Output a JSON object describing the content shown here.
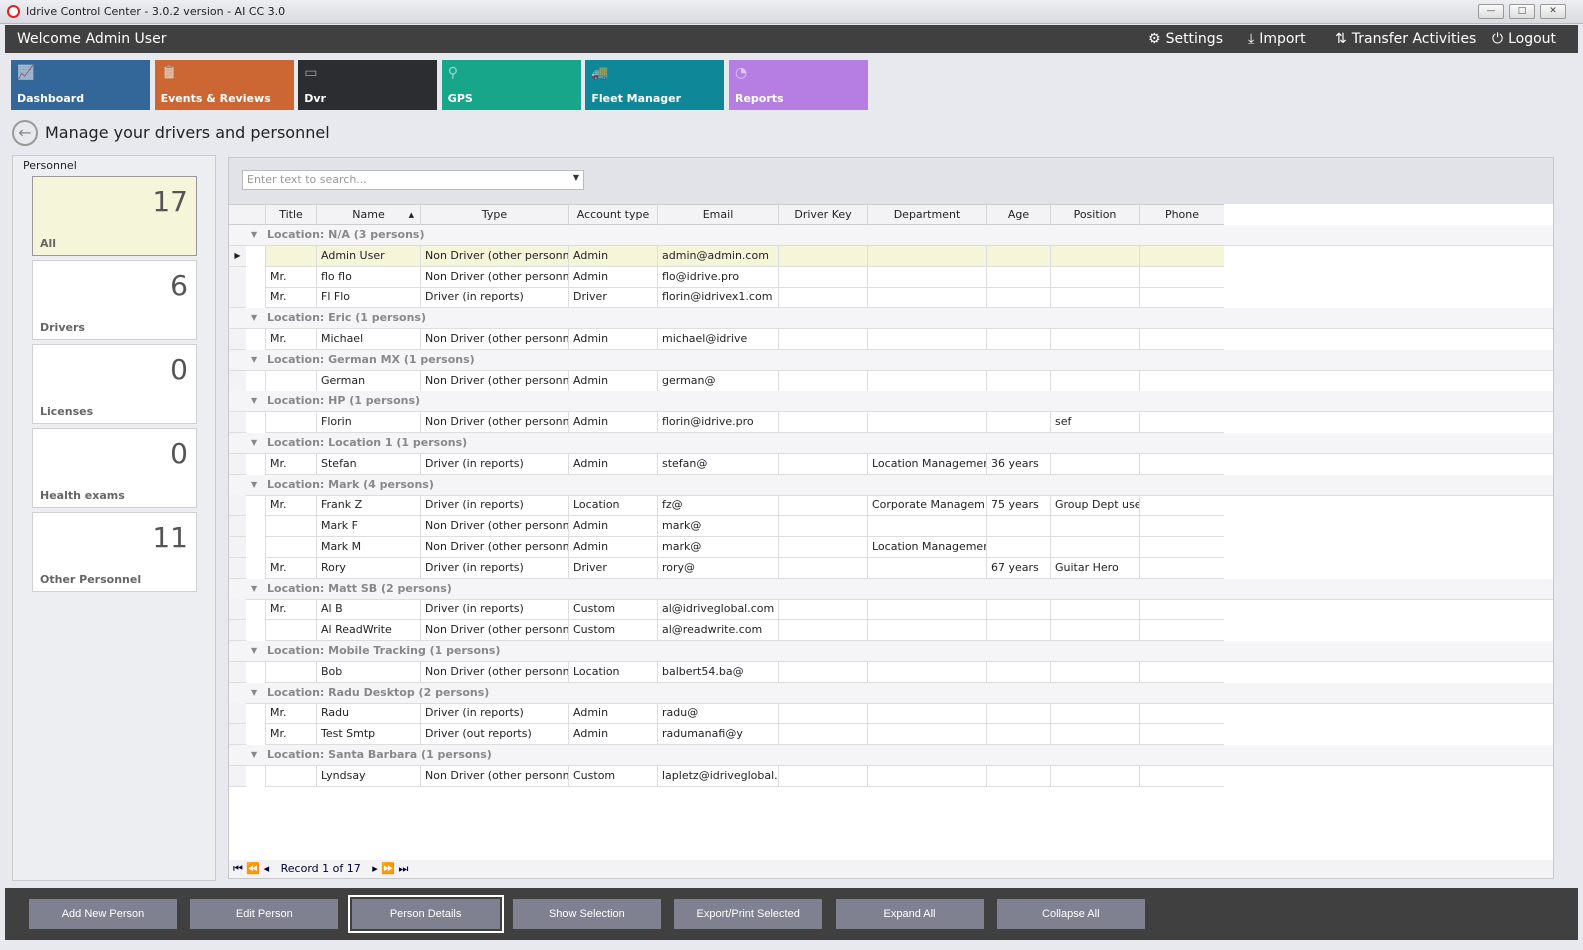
{
  "window": {
    "title": "Idrive Control Center - 3.0.2 version - AI CC 3.0"
  },
  "header": {
    "welcome": "Welcome Admin User",
    "links": [
      {
        "label": "Settings",
        "icon": "gear-icon"
      },
      {
        "label": "Import",
        "icon": "download-icon"
      },
      {
        "label": "Transfer Activities",
        "icon": "transfer-icon"
      },
      {
        "label": "Logout",
        "icon": "power-icon"
      }
    ]
  },
  "tiles": [
    {
      "label": "Dashboard",
      "color": "#336699",
      "icon": "chart-icon"
    },
    {
      "label": "Events & Reviews",
      "color": "#cc6633",
      "icon": "clipboard-icon"
    },
    {
      "label": "Dvr",
      "color": "#2b2d31",
      "icon": "dvr-icon"
    },
    {
      "label": "GPS",
      "color": "#18a68a",
      "icon": "map-pin-icon"
    },
    {
      "label": "Fleet Manager",
      "color": "#0e8799",
      "icon": "vehicles-icon"
    },
    {
      "label": "Reports",
      "color": "#b67ee3",
      "icon": "pie-chart-icon"
    }
  ],
  "page_title": "Manage your drivers and personnel",
  "personnel": {
    "header": "Personnel",
    "cards": [
      {
        "count": "17",
        "label": "All"
      },
      {
        "count": "6",
        "label": "Drivers"
      },
      {
        "count": "0",
        "label": "Licenses"
      },
      {
        "count": "0",
        "label": "Health exams"
      },
      {
        "count": "11",
        "label": "Other Personnel"
      }
    ]
  },
  "grid": {
    "search_placeholder": "Enter text to search...",
    "columns": [
      "Title",
      "Name",
      "Type",
      "Account type",
      "Email",
      "Driver Key",
      "Department",
      "Age",
      "Position",
      "Phone"
    ],
    "sort_column": "Name",
    "groups": [
      {
        "label": "Location: N/A (3 persons)",
        "rows": [
          [
            "",
            "Admin User",
            "Non Driver (other personnel)",
            "Admin",
            "admin@admin.com",
            "",
            "",
            "",
            "",
            ""
          ],
          [
            "Mr.",
            "flo flo",
            "Non Driver (other personnel)",
            "Admin",
            "flo@idrive.pro",
            "",
            "",
            "",
            "",
            ""
          ],
          [
            "Mr.",
            "Fl Flo",
            "Driver (in reports)",
            "Driver",
            "florin@idrivex1.com",
            "",
            "",
            "",
            "",
            ""
          ]
        ]
      },
      {
        "label": "Location: Eric (1 persons)",
        "rows": [
          [
            "Mr.",
            "Michael",
            "Non Driver (other personnel)",
            "Admin",
            "michael@idrive",
            "",
            "",
            "",
            "",
            ""
          ]
        ]
      },
      {
        "label": "Location: German MX (1 persons)",
        "rows": [
          [
            "",
            "German",
            "Non Driver (other personnel)",
            "Admin",
            "german@",
            "",
            "",
            "",
            "",
            ""
          ]
        ]
      },
      {
        "label": "Location: HP (1 persons)",
        "rows": [
          [
            "",
            "Florin",
            "Non Driver (other personnel)",
            "Admin",
            "florin@idrive.pro",
            "",
            "",
            "",
            "sef",
            ""
          ]
        ]
      },
      {
        "label": "Location: Location 1 (1 persons)",
        "rows": [
          [
            "Mr.",
            "Stefan",
            "Driver (in reports)",
            "Admin",
            "stefan@",
            "",
            "Location Management",
            "36 years",
            "",
            ""
          ]
        ]
      },
      {
        "label": "Location: Mark (4 persons)",
        "rows": [
          [
            "Mr.",
            "Frank Z",
            "Driver (in reports)",
            "Location",
            "fz@",
            "",
            "Corporate Managem...",
            "75 years",
            "Group Dept user",
            ""
          ],
          [
            "",
            "Mark F",
            "Non Driver (other personnel)",
            "Admin",
            "mark@",
            "",
            "",
            "",
            "",
            ""
          ],
          [
            "",
            "Mark M",
            "Non Driver (other personnel)",
            "Admin",
            "mark@",
            "",
            "Location Management",
            "",
            "",
            ""
          ],
          [
            "Mr.",
            "Rory",
            "Driver (in reports)",
            "Driver",
            "rory@",
            "",
            "",
            "67 years",
            "Guitar Hero",
            ""
          ]
        ]
      },
      {
        "label": "Location: Matt SB (2 persons)",
        "rows": [
          [
            "Mr.",
            "Al B",
            "Driver (in reports)",
            "Custom",
            "al@idriveglobal.com",
            "",
            "",
            "",
            "",
            ""
          ],
          [
            "",
            "Al ReadWrite",
            "Non Driver (other personnel)",
            "Custom",
            "al@readwrite.com",
            "",
            "",
            "",
            "",
            ""
          ]
        ]
      },
      {
        "label": "Location: Mobile Tracking (1 persons)",
        "rows": [
          [
            "",
            "Bob",
            "Non Driver (other personnel)",
            "Location",
            "balbert54.ba@",
            "",
            "",
            "",
            "",
            ""
          ]
        ]
      },
      {
        "label": "Location: Radu Desktop (2 persons)",
        "rows": [
          [
            "Mr.",
            "Radu",
            "Driver (in reports)",
            "Admin",
            "radu@",
            "",
            "",
            "",
            "",
            ""
          ],
          [
            "Mr.",
            "Test Smtp",
            "Driver (out reports)",
            "Admin",
            "radumanafi@y",
            "",
            "",
            "",
            "",
            ""
          ]
        ]
      },
      {
        "label": "Location: Santa Barbara (1 persons)",
        "rows": [
          [
            "",
            "Lyndsay",
            "Non Driver (other personnel)",
            "Custom",
            "lapletz@idriveglobal....",
            "",
            "",
            "",
            "",
            ""
          ]
        ]
      }
    ],
    "pager": "Record 1 of 17"
  },
  "actions": [
    "Add New Person",
    "Edit Person",
    "Person Details",
    "Show Selection",
    "Export/Print Selected",
    "Expand All",
    "Collapse All"
  ]
}
